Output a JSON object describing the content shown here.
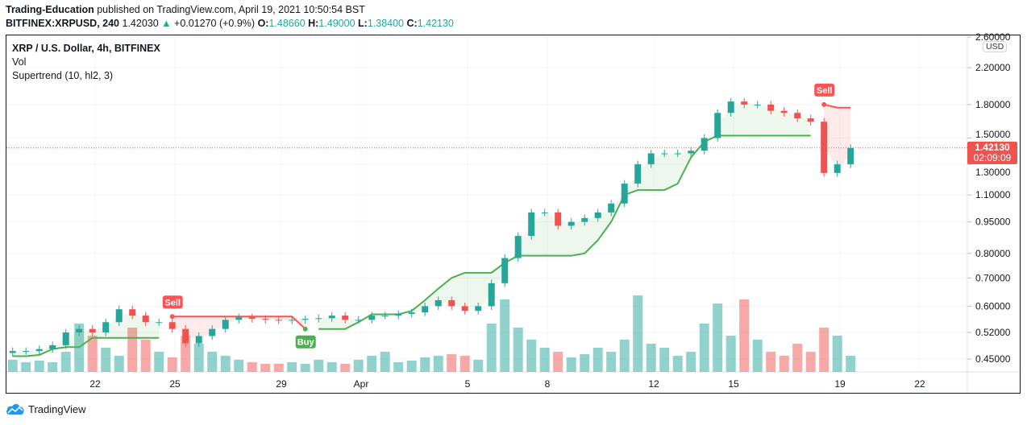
{
  "header": {
    "author": "Trading-Education",
    "published": "published on TradingView.com, April 19, 2021 10:50:54 BST",
    "symbol": "BITFINEX:XRPUSD, 240",
    "last": "1.42030",
    "change": "+0.01270 (+0.9%)",
    "o_label": "O:",
    "o": "1.48660",
    "h_label": "H:",
    "h": "1.49000",
    "l_label": "L:",
    "l": "1.38400",
    "c_label": "C:",
    "c": "1.42130"
  },
  "legend": {
    "title": "XRP / U.S. Dollar, 4h, BITFINEX",
    "vol": "Vol",
    "indicator": "Supertrend (10, hl2, 3)"
  },
  "axis": {
    "currency": "USD",
    "price_tag": "1.42130",
    "countdown": "02:09:09"
  },
  "brand": "TradingView",
  "colors": {
    "up": "#26a69a",
    "down": "#ef5350",
    "st_up": "#4caf50",
    "st_down": "#ff5252"
  },
  "chart_data": {
    "type": "candlestick",
    "scale": "log",
    "ylim": [
      0.45,
      2.6
    ],
    "yticks": [
      "2.60000",
      "2.20000",
      "1.80000",
      "1.50000",
      "1.30000",
      "1.10000",
      "0.95000",
      "0.80000",
      "0.70000",
      "0.60000",
      "0.52000",
      "0.45000"
    ],
    "xticks": [
      {
        "label": "22",
        "date": "2021-03-22"
      },
      {
        "label": "25",
        "date": "2021-03-25"
      },
      {
        "label": "29",
        "date": "2021-03-29"
      },
      {
        "label": "Apr",
        "date": "2021-04-01"
      },
      {
        "label": "5",
        "date": "2021-04-05"
      },
      {
        "label": "8",
        "date": "2021-04-08"
      },
      {
        "label": "12",
        "date": "2021-04-12"
      },
      {
        "label": "15",
        "date": "2021-04-15"
      },
      {
        "label": "19",
        "date": "2021-04-19"
      },
      {
        "label": "22",
        "date": "2021-04-22"
      }
    ],
    "grid": true,
    "first_candle": "2021-03-18",
    "candle_interval": "12h",
    "first_open": 0.465,
    "closes": [
      0.47,
      0.47,
      0.475,
      0.485,
      0.52,
      0.53,
      0.52,
      0.55,
      0.59,
      0.57,
      0.55,
      0.55,
      0.53,
      0.49,
      0.51,
      0.53,
      0.557,
      0.565,
      0.56,
      0.557,
      0.555,
      0.557,
      0.56,
      0.562,
      0.57,
      0.557,
      0.557,
      0.57,
      0.57,
      0.575,
      0.58,
      0.6,
      0.62,
      0.6,
      0.585,
      0.6,
      0.68,
      0.78,
      0.88,
      1.0,
      1.0,
      0.93,
      0.95,
      0.97,
      1.0,
      1.05,
      1.17,
      1.3,
      1.38,
      1.38,
      1.38,
      1.4,
      1.5,
      1.72,
      1.83,
      1.8,
      1.8,
      1.74,
      1.72,
      1.67,
      1.64,
      1.24,
      1.3,
      1.4213
    ],
    "volume": [
      15,
      12,
      14,
      12,
      25,
      60,
      45,
      30,
      20,
      55,
      40,
      25,
      18,
      45,
      35,
      25,
      20,
      15,
      12,
      10,
      10,
      12,
      10,
      15,
      12,
      10,
      15,
      20,
      25,
      12,
      14,
      18,
      20,
      22,
      20,
      15,
      60,
      90,
      55,
      40,
      30,
      25,
      18,
      22,
      30,
      25,
      40,
      95,
      35,
      30,
      20,
      25,
      60,
      85,
      45,
      90,
      40,
      25,
      20,
      35,
      25,
      55,
      45,
      20
    ],
    "supertrend": [
      0.457,
      0.457,
      0.46,
      0.475,
      0.48,
      0.48,
      0.505,
      0.505,
      0.505,
      0.505,
      0.505,
      0.505,
      0.567,
      0.567,
      0.567,
      0.567,
      0.567,
      0.567,
      0.567,
      0.567,
      0.567,
      0.567,
      0.53,
      0.53,
      0.53,
      0.53,
      0.55,
      0.574,
      0.574,
      0.574,
      0.585,
      0.62,
      0.66,
      0.7,
      0.72,
      0.72,
      0.72,
      0.76,
      0.79,
      0.79,
      0.79,
      0.79,
      0.79,
      0.8,
      0.86,
      0.95,
      1.1,
      1.13,
      1.13,
      1.13,
      1.17,
      1.35,
      1.47,
      1.52,
      1.52,
      1.52,
      1.52,
      1.52,
      1.52,
      1.52,
      1.52,
      1.8,
      1.77,
      1.77
    ],
    "supertrend_dir": "uuuuuuuuuuuuddddddddddduuuuuuuuuuuuuuuuuuuuuuuuuuuuuuuuuuuuuuddd",
    "signals": [
      {
        "index": 12,
        "type": "sell",
        "label": "Sell"
      },
      {
        "index": 22,
        "type": "buy",
        "label": "Buy"
      },
      {
        "index": 61,
        "type": "sell",
        "label": "Sell"
      }
    ]
  }
}
